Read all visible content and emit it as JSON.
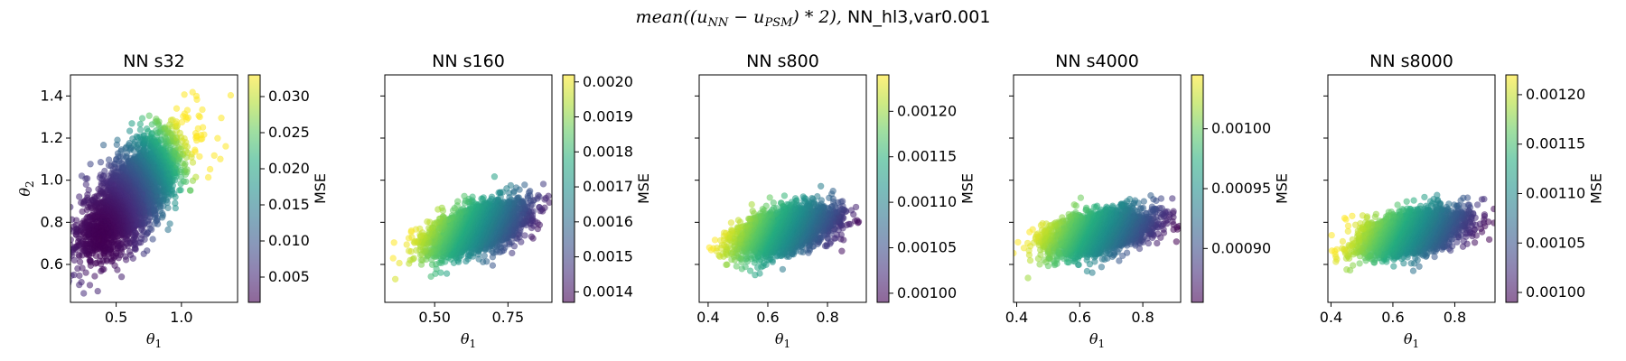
{
  "figure": {
    "suptitle": "mean((u_NN − u_PSM) * 2), NN_hl3,var0.001",
    "suptitle_parts": {
      "prefix": "mean((u",
      "sub1": "NN",
      "minus": " − u",
      "sub2": "PSM",
      "suffix": ") * 2), ",
      "tail": "NN_hl3,var0.001"
    },
    "colormap": "viridis",
    "point_alpha": 0.55
  },
  "chart_data": [
    {
      "type": "scatter",
      "title": "NN s32",
      "xlabel": "θ1",
      "ylabel": "θ2",
      "xlim": [
        0.15,
        1.43
      ],
      "ylim": [
        0.42,
        1.5
      ],
      "xticks": [
        {
          "v": 0.5,
          "label": "0.5"
        },
        {
          "v": 1.0,
          "label": "1.0"
        }
      ],
      "yticks": [
        {
          "v": 0.6,
          "label": "0.6"
        },
        {
          "v": 0.8,
          "label": "0.8"
        },
        {
          "v": 1.0,
          "label": "1.0"
        },
        {
          "v": 1.2,
          "label": "1.2"
        },
        {
          "v": 1.4,
          "label": "1.4"
        }
      ],
      "cbar_label": "MSE",
      "cbar_range": [
        0.0015,
        0.033
      ],
      "cbar_ticks": [
        {
          "v": 0.005,
          "label": "0.005"
        },
        {
          "v": 0.01,
          "label": "0.010"
        },
        {
          "v": 0.015,
          "label": "0.015"
        },
        {
          "v": 0.02,
          "label": "0.020"
        },
        {
          "v": 0.025,
          "label": "0.025"
        },
        {
          "v": 0.03,
          "label": "0.030"
        }
      ],
      "cloud": {
        "center": [
          0.62,
          0.93
        ],
        "sd": [
          0.2,
          0.15
        ],
        "corr": 0.7,
        "trend": "increasing-radial",
        "count": 2600
      }
    },
    {
      "type": "scatter",
      "title": "NN s160",
      "xlabel": "θ1",
      "ylabel": "",
      "xlim": [
        0.33,
        0.9
      ],
      "ylim": [
        0.42,
        1.5
      ],
      "xticks": [
        {
          "v": 0.5,
          "label": "0.50"
        },
        {
          "v": 0.75,
          "label": "0.75"
        }
      ],
      "yticks": [
        {
          "v": 0.6,
          "label": ""
        },
        {
          "v": 0.8,
          "label": ""
        },
        {
          "v": 1.0,
          "label": ""
        },
        {
          "v": 1.2,
          "label": ""
        },
        {
          "v": 1.4,
          "label": ""
        }
      ],
      "cbar_label": "MSE",
      "cbar_range": [
        0.00137,
        0.00202
      ],
      "cbar_ticks": [
        {
          "v": 0.0014,
          "label": "0.0014"
        },
        {
          "v": 0.0015,
          "label": "0.0015"
        },
        {
          "v": 0.0016,
          "label": "0.0016"
        },
        {
          "v": 0.0017,
          "label": "0.0017"
        },
        {
          "v": 0.0018,
          "label": "0.0018"
        },
        {
          "v": 0.0019,
          "label": "0.0019"
        },
        {
          "v": 0.002,
          "label": "0.0020"
        }
      ],
      "cloud": {
        "center": [
          0.64,
          0.77
        ],
        "sd": [
          0.085,
          0.065
        ],
        "corr": 0.55,
        "trend": "decreasing-right",
        "count": 2400
      }
    },
    {
      "type": "scatter",
      "title": "NN s800",
      "xlabel": "θ1",
      "ylabel": "",
      "xlim": [
        0.37,
        0.93
      ],
      "ylim": [
        0.42,
        1.5
      ],
      "xticks": [
        {
          "v": 0.4,
          "label": "0.4"
        },
        {
          "v": 0.6,
          "label": "0.6"
        },
        {
          "v": 0.8,
          "label": "0.8"
        }
      ],
      "yticks": [
        {
          "v": 0.6,
          "label": ""
        },
        {
          "v": 0.8,
          "label": ""
        },
        {
          "v": 1.0,
          "label": ""
        },
        {
          "v": 1.2,
          "label": ""
        },
        {
          "v": 1.4,
          "label": ""
        }
      ],
      "cbar_label": "MSE",
      "cbar_range": [
        0.00099,
        0.00124
      ],
      "cbar_ticks": [
        {
          "v": 0.001,
          "label": "0.00100"
        },
        {
          "v": 0.00105,
          "label": "0.00105"
        },
        {
          "v": 0.0011,
          "label": "0.00110"
        },
        {
          "v": 0.00115,
          "label": "0.00115"
        },
        {
          "v": 0.0012,
          "label": "0.00120"
        }
      ],
      "cloud": {
        "center": [
          0.66,
          0.76
        ],
        "sd": [
          0.085,
          0.06
        ],
        "corr": 0.5,
        "trend": "decreasing-right",
        "count": 2400
      }
    },
    {
      "type": "scatter",
      "title": "NN s4000",
      "xlabel": "θ1",
      "ylabel": "",
      "xlim": [
        0.39,
        0.92
      ],
      "ylim": [
        0.42,
        1.5
      ],
      "xticks": [
        {
          "v": 0.4,
          "label": "0.4"
        },
        {
          "v": 0.6,
          "label": "0.6"
        },
        {
          "v": 0.8,
          "label": "0.8"
        }
      ],
      "yticks": [
        {
          "v": 0.6,
          "label": ""
        },
        {
          "v": 0.8,
          "label": ""
        },
        {
          "v": 1.0,
          "label": ""
        },
        {
          "v": 1.2,
          "label": ""
        },
        {
          "v": 1.4,
          "label": ""
        }
      ],
      "cbar_label": "MSE",
      "cbar_range": [
        0.000855,
        0.001045
      ],
      "cbar_ticks": [
        {
          "v": 0.0009,
          "label": "0.00090"
        },
        {
          "v": 0.00095,
          "label": "0.00095"
        },
        {
          "v": 0.001,
          "label": "0.00100"
        }
      ],
      "cloud": {
        "center": [
          0.66,
          0.75
        ],
        "sd": [
          0.085,
          0.055
        ],
        "corr": 0.45,
        "trend": "decreasing-right",
        "count": 2400
      }
    },
    {
      "type": "scatter",
      "title": "NN s8000",
      "xlabel": "θ1",
      "ylabel": "",
      "xlim": [
        0.39,
        0.93
      ],
      "ylim": [
        0.42,
        1.5
      ],
      "xticks": [
        {
          "v": 0.4,
          "label": "0.4"
        },
        {
          "v": 0.6,
          "label": "0.6"
        },
        {
          "v": 0.8,
          "label": "0.8"
        }
      ],
      "yticks": [
        {
          "v": 0.6,
          "label": ""
        },
        {
          "v": 0.8,
          "label": ""
        },
        {
          "v": 1.0,
          "label": ""
        },
        {
          "v": 1.2,
          "label": ""
        },
        {
          "v": 1.4,
          "label": ""
        }
      ],
      "cbar_label": "MSE",
      "cbar_range": [
        0.00099,
        0.00122
      ],
      "cbar_ticks": [
        {
          "v": 0.001,
          "label": "0.00100"
        },
        {
          "v": 0.00105,
          "label": "0.00105"
        },
        {
          "v": 0.0011,
          "label": "0.00110"
        },
        {
          "v": 0.00115,
          "label": "0.00115"
        },
        {
          "v": 0.0012,
          "label": "0.00120"
        }
      ],
      "cloud": {
        "center": [
          0.66,
          0.75
        ],
        "sd": [
          0.085,
          0.055
        ],
        "corr": 0.45,
        "trend": "decreasing-right",
        "count": 2400
      }
    }
  ]
}
